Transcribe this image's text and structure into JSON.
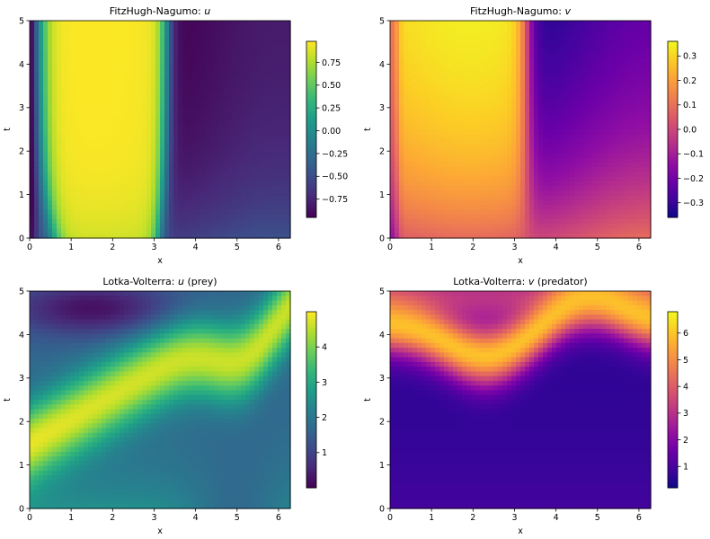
{
  "chart_data": [
    {
      "type": "heatmap",
      "title_prefix": "FitzHugh-Nagumo: ",
      "title_var": "u",
      "title_suffix": "",
      "xlabel": "x",
      "ylabel": "t",
      "xlim": [
        0,
        6.283
      ],
      "ylim": [
        0,
        5
      ],
      "xticks": [
        0,
        1,
        2,
        3,
        4,
        5,
        6
      ],
      "yticks": [
        0,
        1,
        2,
        3,
        4,
        5
      ],
      "colormap": "viridis",
      "colorbar_range": [
        -0.95,
        0.98
      ],
      "colorbar_ticks": [
        0.75,
        0.5,
        0.25,
        0.0,
        -0.25,
        -0.5,
        -0.75
      ],
      "colorbar_tick_labels": [
        "0.75",
        "0.50",
        "0.25",
        "0.00",
        "−0.25",
        "−0.50",
        "−0.75"
      ]
    },
    {
      "type": "heatmap",
      "title_prefix": "FitzHugh-Nagumo: ",
      "title_var": "v",
      "title_suffix": "",
      "xlabel": "x",
      "ylabel": "t",
      "xlim": [
        0,
        6.283
      ],
      "ylim": [
        0,
        5
      ],
      "xticks": [
        0,
        1,
        2,
        3,
        4,
        5,
        6
      ],
      "yticks": [
        0,
        1,
        2,
        3,
        4,
        5
      ],
      "colormap": "plasma",
      "colorbar_range": [
        -0.36,
        0.36
      ],
      "colorbar_ticks": [
        0.3,
        0.2,
        0.1,
        0.0,
        -0.1,
        -0.2,
        -0.3
      ],
      "colorbar_tick_labels": [
        "0.3",
        "0.2",
        "0.1",
        "0.0",
        "−0.1",
        "−0.2",
        "−0.3"
      ]
    },
    {
      "type": "heatmap",
      "title_prefix": "Lotka-Volterra: ",
      "title_var": "u",
      "title_suffix": " (prey)",
      "xlabel": "x",
      "ylabel": "t",
      "xlim": [
        0,
        6.283
      ],
      "ylim": [
        0,
        5
      ],
      "xticks": [
        0,
        1,
        2,
        3,
        4,
        5,
        6
      ],
      "yticks": [
        0,
        1,
        2,
        3,
        4,
        5
      ],
      "colormap": "viridis",
      "colorbar_range": [
        0.0,
        5.0
      ],
      "colorbar_ticks": [
        4,
        3,
        2,
        1
      ],
      "colorbar_tick_labels": [
        "4",
        "3",
        "2",
        "1"
      ]
    },
    {
      "type": "heatmap",
      "title_prefix": "Lotka-Volterra: ",
      "title_var": "v",
      "title_suffix": " (predator)",
      "xlabel": "x",
      "ylabel": "t",
      "xlim": [
        0,
        6.283
      ],
      "ylim": [
        0,
        5
      ],
      "xticks": [
        0,
        1,
        2,
        3,
        4,
        5,
        6
      ],
      "yticks": [
        0,
        1,
        2,
        3,
        4,
        5
      ],
      "colormap": "plasma",
      "colorbar_range": [
        0.2,
        6.8
      ],
      "colorbar_ticks": [
        6,
        5,
        4,
        3,
        2,
        1
      ],
      "colorbar_tick_labels": [
        "6",
        "5",
        "4",
        "3",
        "2",
        "1"
      ]
    }
  ]
}
